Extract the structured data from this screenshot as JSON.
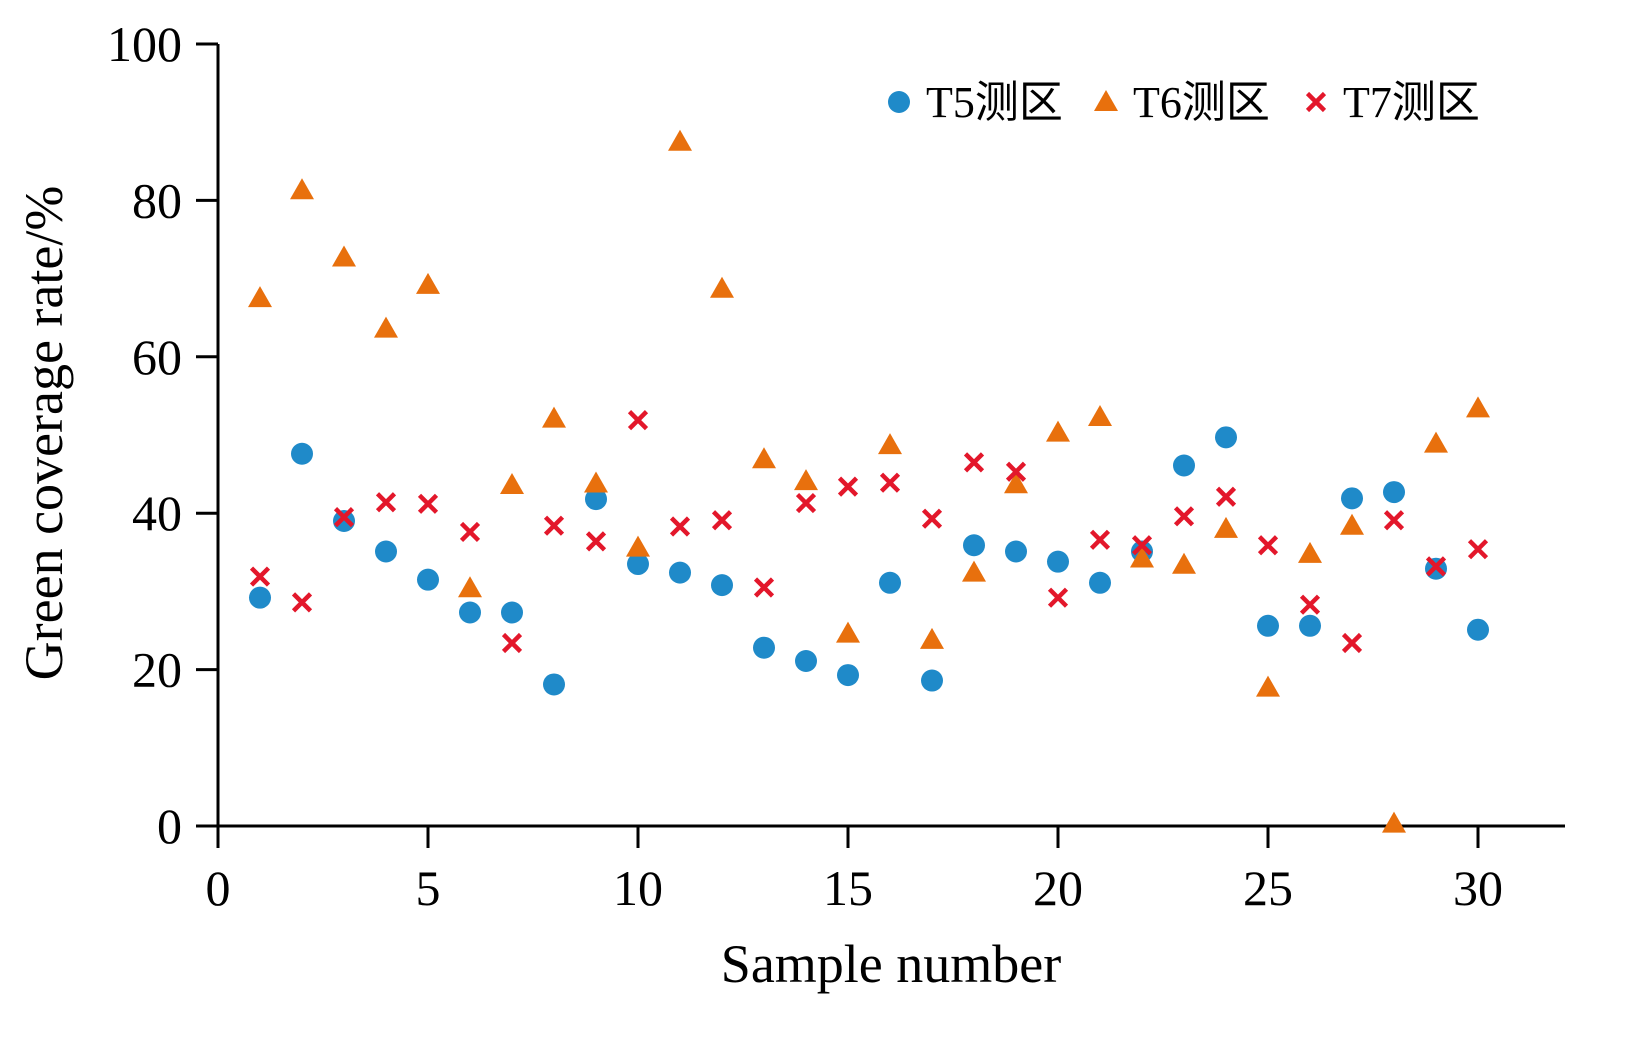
{
  "chart_data": {
    "type": "scatter",
    "xlabel": "Sample number",
    "ylabel": "Green coverage rate/%",
    "xlim": [
      0,
      32
    ],
    "ylim": [
      0,
      100
    ],
    "xticks": [
      0,
      5,
      10,
      15,
      20,
      25,
      30
    ],
    "yticks": [
      0,
      20,
      40,
      60,
      80,
      100
    ],
    "grid": false,
    "legend_position": "top-right",
    "x": [
      1,
      2,
      3,
      4,
      5,
      6,
      7,
      8,
      9,
      10,
      11,
      12,
      13,
      14,
      15,
      16,
      17,
      18,
      19,
      20,
      21,
      22,
      23,
      24,
      25,
      26,
      27,
      28,
      29,
      30
    ],
    "series": [
      {
        "name": "T5测区",
        "marker": "circle",
        "color": "#1f8ac9",
        "values": [
          29.2,
          47.6,
          39.0,
          35.1,
          31.5,
          27.3,
          27.3,
          18.1,
          41.8,
          33.5,
          32.4,
          30.8,
          22.8,
          21.1,
          19.3,
          31.1,
          18.6,
          35.9,
          35.1,
          33.8,
          31.1,
          35.1,
          46.1,
          49.7,
          25.6,
          25.6,
          41.9,
          42.7,
          32.9,
          25.1
        ]
      },
      {
        "name": "T6测区",
        "marker": "triangle",
        "color": "#e8700d",
        "values": [
          67.5,
          81.3,
          72.7,
          63.6,
          69.2,
          30.4,
          43.6,
          52.1,
          43.8,
          35.6,
          87.5,
          68.7,
          46.9,
          44.1,
          24.6,
          48.7,
          23.8,
          32.4,
          43.7,
          50.3,
          52.3,
          34.2,
          33.4,
          38.0,
          17.7,
          34.8,
          38.4,
          0.3,
          48.9,
          53.4
        ]
      },
      {
        "name": "T7测区",
        "marker": "x",
        "color": "#e3172b",
        "values": [
          31.9,
          28.6,
          39.5,
          41.4,
          41.2,
          37.6,
          23.4,
          38.4,
          36.4,
          51.9,
          38.3,
          39.1,
          30.5,
          41.3,
          43.4,
          43.9,
          39.3,
          46.5,
          45.3,
          29.2,
          36.6,
          35.9,
          39.6,
          42.1,
          35.9,
          28.3,
          23.4,
          39.1,
          33.2,
          35.4
        ]
      }
    ]
  }
}
